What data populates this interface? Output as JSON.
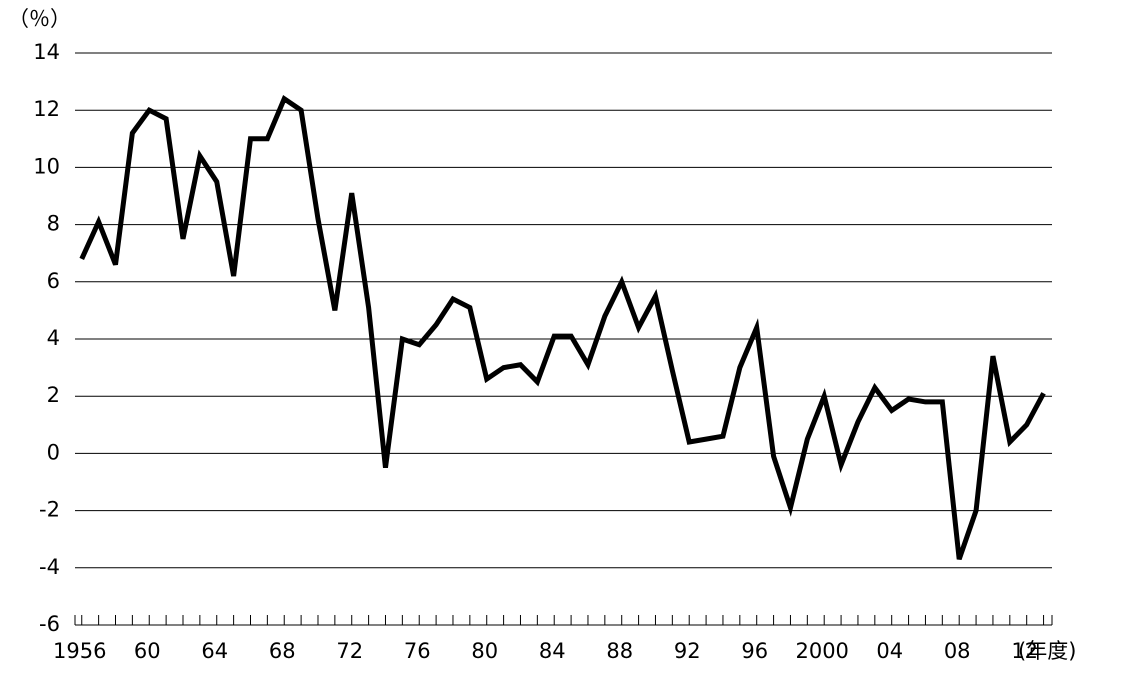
{
  "chart_data": {
    "type": "line",
    "y_label": "（％）",
    "x_label": "(年度)",
    "x": [
      1956,
      1957,
      1958,
      1959,
      1960,
      1961,
      1962,
      1963,
      1964,
      1965,
      1966,
      1967,
      1968,
      1969,
      1970,
      1971,
      1972,
      1973,
      1974,
      1975,
      1976,
      1977,
      1978,
      1979,
      1980,
      1981,
      1982,
      1983,
      1984,
      1985,
      1986,
      1987,
      1988,
      1989,
      1990,
      1991,
      1992,
      1993,
      1994,
      1995,
      1996,
      1997,
      1998,
      1999,
      2000,
      2001,
      2002,
      2003,
      2004,
      2005,
      2006,
      2007,
      2008,
      2009,
      2010,
      2011,
      2012,
      2013
    ],
    "series": [
      {
        "color": "#000000",
        "values": [
          6.8,
          8.1,
          6.6,
          11.2,
          12.0,
          11.7,
          7.5,
          10.4,
          9.5,
          6.2,
          11.0,
          11.0,
          12.4,
          12.0,
          8.2,
          5.0,
          9.1,
          5.1,
          -0.5,
          4.0,
          3.8,
          4.5,
          5.4,
          5.1,
          2.6,
          3.0,
          3.1,
          2.5,
          4.1,
          4.1,
          3.1,
          4.8,
          6.0,
          4.4,
          5.5,
          2.9,
          0.4,
          0.5,
          0.6,
          3.0,
          4.4,
          -0.1,
          -1.9,
          0.5,
          2.0,
          -0.4,
          1.1,
          2.3,
          1.5,
          1.9,
          1.8,
          1.8,
          -3.7,
          -2.0,
          3.4,
          0.4,
          1.0,
          2.1
        ]
      }
    ],
    "xlim": [
      1955.6,
      2013.5
    ],
    "xticks": [
      1956,
      {
        "value": 1960,
        "label": "60"
      },
      {
        "value": 1964,
        "label": "64"
      },
      {
        "value": 1968,
        "label": "68"
      },
      {
        "value": 1972,
        "label": "72"
      },
      {
        "value": 1976,
        "label": "76"
      },
      {
        "value": 1980,
        "label": "80"
      },
      {
        "value": 1984,
        "label": "84"
      },
      {
        "value": 1988,
        "label": "88"
      },
      {
        "value": 1992,
        "label": "92"
      },
      {
        "value": 1996,
        "label": "96"
      },
      2000,
      {
        "value": 2004,
        "label": "04"
      },
      {
        "value": 2008,
        "label": "08"
      },
      {
        "value": 2012,
        "label": "12"
      }
    ],
    "ylim": [
      -6,
      14
    ],
    "yticks": [
      -6,
      -4,
      -2,
      0,
      2,
      4,
      6,
      8,
      10,
      12,
      14
    ],
    "grid": true
  }
}
